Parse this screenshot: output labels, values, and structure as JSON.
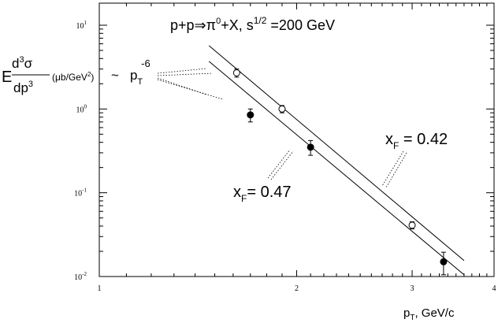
{
  "chart_data": {
    "type": "scatter",
    "title": "p+p⇒π⁰+X, s^1/2 =200 GeV",
    "title_parts": {
      "reaction": "p+p",
      "arrow": "⇒",
      "pi": "π",
      "pi_sup": "0",
      "rest": "+X, s",
      "s_sup": "1/2",
      "energy": " =200 GeV"
    },
    "xlabel": "p_T, GeV/c",
    "xlabel_parts": {
      "p": "p",
      "sub": "T",
      "rest": ", GeV/c"
    },
    "ylabel": "E d³σ/dp³ (μb/GeV²)",
    "ylabel_parts": {
      "E": "E",
      "numerator": "d",
      "num_sup": "3",
      "sigma": "σ",
      "denominator": "dp",
      "den_sup": "3",
      "units": "(μb/GeV",
      "units_sup": "2",
      "units_close": ")"
    },
    "x_scale": "log",
    "y_scale": "log",
    "xlim": [
      1,
      4
    ],
    "ylim": [
      0.01,
      15
    ],
    "x_ticks": [
      {
        "value": 1,
        "label": "1"
      },
      {
        "value": 2,
        "label": "2"
      },
      {
        "value": 3,
        "label": "3"
      },
      {
        "value": 4,
        "label": "4"
      }
    ],
    "y_ticks": [
      {
        "value": 0.01,
        "base": "10",
        "exp": "-2"
      },
      {
        "value": 0.1,
        "base": "10",
        "exp": "-1"
      },
      {
        "value": 1,
        "base": "10",
        "exp": "0"
      },
      {
        "value": 10,
        "base": "10",
        "exp": "1"
      }
    ],
    "grid": false,
    "series": [
      {
        "name": "x_F = 0.42",
        "name_parts": {
          "x": "x",
          "sub": "F",
          "rest": " = 0.42"
        },
        "marker": "open-circle",
        "points": [
          {
            "x": 1.62,
            "y": 2.7,
            "err": 0.3
          },
          {
            "x": 1.9,
            "y": 1.0,
            "err": 0.1
          },
          {
            "x": 3.0,
            "y": 0.041,
            "err": 0.004
          }
        ]
      },
      {
        "name": "x_F = 0.47",
        "name_parts": {
          "x": "x",
          "sub": "F",
          "rest": "= 0.47"
        },
        "marker": "filled-circle",
        "points": [
          {
            "x": 1.7,
            "y": 0.85,
            "err": 0.15
          },
          {
            "x": 2.1,
            "y": 0.35,
            "err": 0.07
          },
          {
            "x": 3.35,
            "y": 0.015,
            "err": 0.0045
          }
        ]
      }
    ],
    "fit_lines": [
      {
        "label": "x_F = 0.42",
        "x": [
          1.47,
          3.6
        ],
        "y": [
          5.7,
          0.0155
        ]
      },
      {
        "label": "x_F = 0.47",
        "x": [
          1.47,
          3.6
        ],
        "y": [
          3.7,
          0.0105
        ]
      }
    ],
    "annotation": {
      "text": "~ p_T^-6",
      "tilde": "~",
      "p": "p",
      "sub": "T",
      "sup": "-6"
    }
  }
}
